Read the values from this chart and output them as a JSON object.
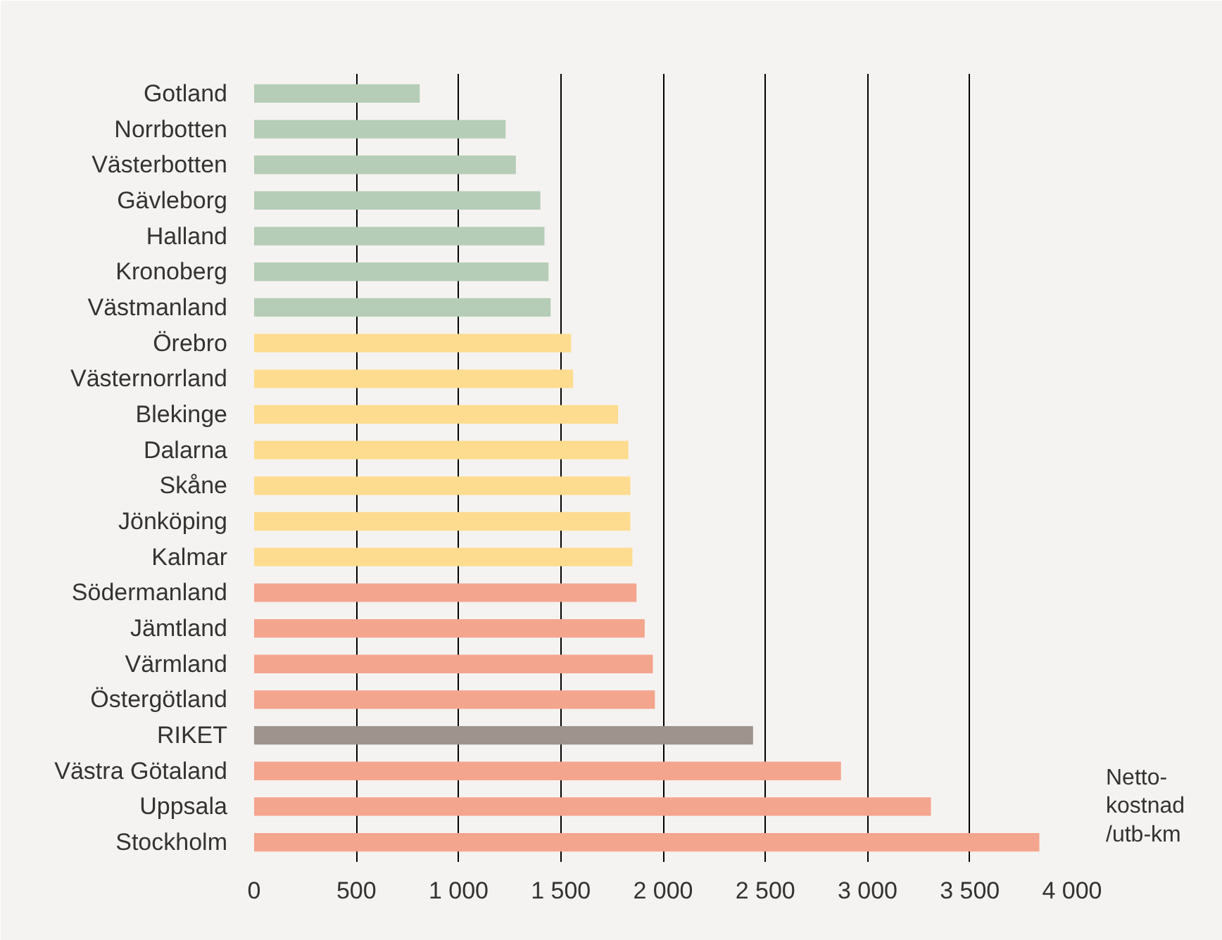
{
  "chart_data": {
    "type": "bar",
    "orientation": "horizontal",
    "xlabel": "Netto-\nkostnad\n/utb-km",
    "categories": [
      "Gotland",
      "Norrbotten",
      "Västerbotten",
      "Gävleborg",
      "Halland",
      "Kronoberg",
      "Västmanland",
      "Örebro",
      "Västernorrland",
      "Blekinge",
      "Dalarna",
      "Skåne",
      "Jönköping",
      "Kalmar",
      "Södermanland",
      "Jämtland",
      "Värmland",
      "Östergötland",
      "RIKET",
      "Västra Götaland",
      "Uppsala",
      "Stockholm"
    ],
    "values": [
      810,
      1230,
      1280,
      1400,
      1420,
      1440,
      1450,
      1550,
      1560,
      1780,
      1830,
      1840,
      1840,
      1850,
      1870,
      1910,
      1950,
      1960,
      2440,
      2870,
      3310,
      3840
    ],
    "colors": [
      "#b5cdb6",
      "#b5cdb6",
      "#b5cdb6",
      "#b5cdb6",
      "#b5cdb6",
      "#b5cdb6",
      "#b5cdb6",
      "#fddc8f",
      "#fddc8f",
      "#fddc8f",
      "#fddc8f",
      "#fddc8f",
      "#fddc8f",
      "#fddc8f",
      "#f4a58e",
      "#f4a58e",
      "#f4a58e",
      "#f4a58e",
      "#9e938d",
      "#f4a58e",
      "#f4a58e",
      "#f4a58e"
    ],
    "xlim": [
      0,
      4000
    ],
    "xticks": [
      0,
      500,
      {
        "value": 1000,
        "label": "1 000"
      },
      {
        "value": 1500,
        "label": "1 500"
      },
      {
        "value": 2000,
        "label": "2 000"
      },
      {
        "value": 2500,
        "label": "2 500"
      },
      {
        "value": 3000,
        "label": "3 000"
      },
      {
        "value": 3500,
        "label": "3 500"
      },
      {
        "value": 4000,
        "label": "4 000"
      }
    ],
    "grid": "x"
  }
}
